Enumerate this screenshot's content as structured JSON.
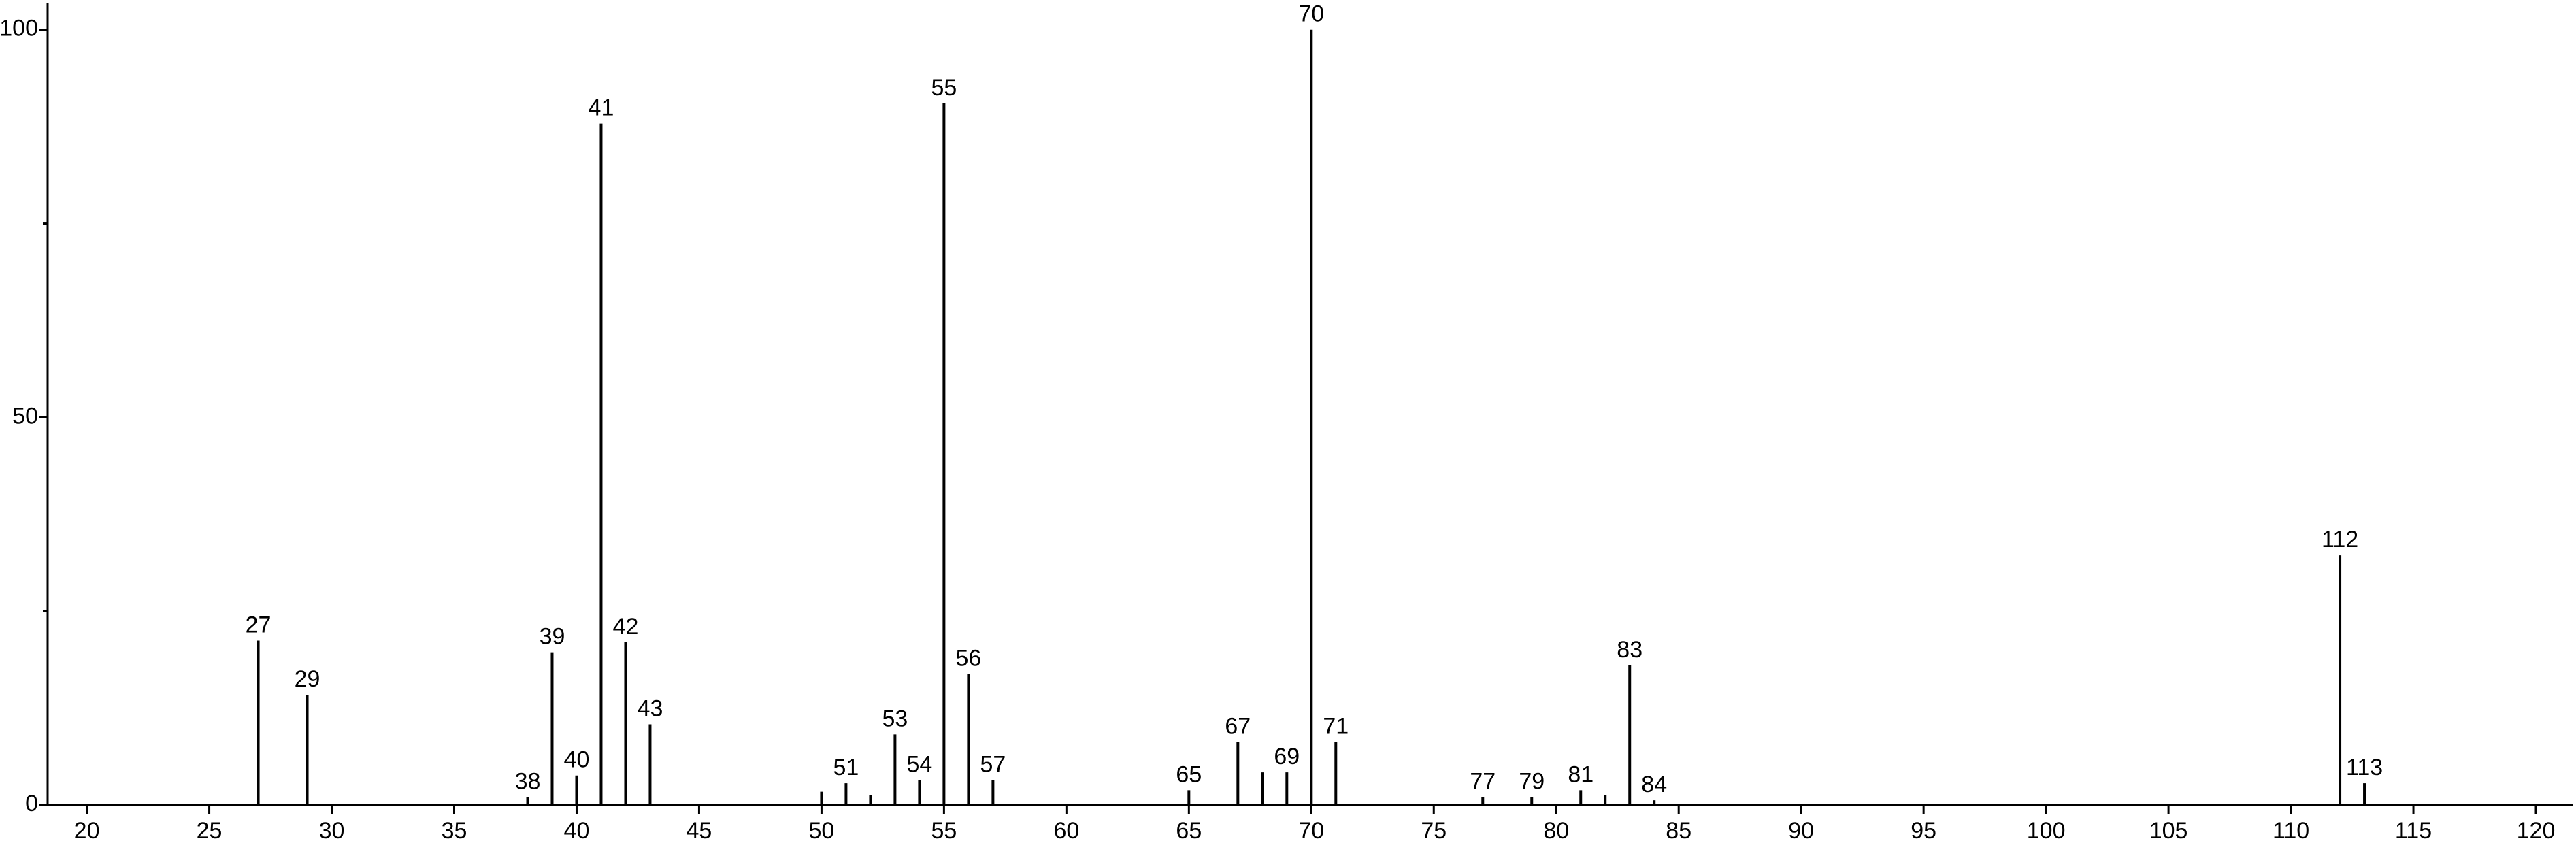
{
  "chart_data": {
    "type": "stem",
    "x": [
      27,
      29,
      38,
      39,
      40,
      41,
      42,
      43,
      50,
      51,
      52,
      53,
      54,
      55,
      56,
      57,
      65,
      67,
      68,
      69,
      70,
      71,
      77,
      79,
      81,
      82,
      83,
      84,
      112,
      113
    ],
    "values": [
      21.2,
      14.2,
      1,
      19.7,
      3.8,
      87.9,
      21,
      10.4,
      1.7,
      2.8,
      1.3,
      9.1,
      3.2,
      90.5,
      16.9,
      3.2,
      1.9,
      8.1,
      4.2,
      4.2,
      100,
      8.1,
      1,
      1,
      1.9,
      1.3,
      18,
      0.6,
      32.2,
      2.8
    ],
    "labels": [
      27,
      29,
      38,
      39,
      40,
      41,
      42,
      43,
      null,
      51,
      null,
      53,
      54,
      55,
      56,
      57,
      65,
      67,
      null,
      69,
      70,
      71,
      77,
      79,
      81,
      null,
      83,
      84,
      112,
      113
    ],
    "color": "#000000",
    "xlim": [
      18.4,
      121.5
    ],
    "xticks": [
      20,
      25,
      30,
      35,
      40,
      45,
      50,
      55,
      60,
      65,
      70,
      75,
      80,
      85,
      90,
      95,
      100,
      105,
      110,
      115,
      120
    ],
    "ylim": [
      0,
      103.4
    ],
    "yticks": [
      0,
      50,
      100
    ],
    "yminorticks": [
      25,
      75
    ]
  }
}
